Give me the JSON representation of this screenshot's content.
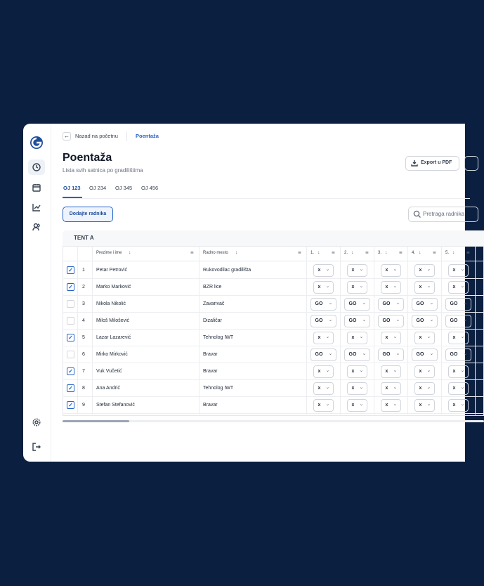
{
  "breadcrumb": {
    "back": "Nazad na početnu",
    "current": "Poentaža"
  },
  "header": {
    "title": "Poentaža",
    "subtitle": "Lista svih satnica po gradilištima",
    "export": "Export u PDF"
  },
  "tabs": {
    "items": [
      "OJ 123",
      "OJ 234",
      "OJ 345",
      "OJ 456"
    ],
    "active": 0
  },
  "toolbar": {
    "add": "Dodajte radnika",
    "search": "Pretraga radnika"
  },
  "table": {
    "group": "TENT A",
    "columns": [
      "Prezime i ime",
      "Radno mesto",
      "1.",
      "2.",
      "3.",
      "4.",
      "5."
    ],
    "rows": [
      {
        "checked": true,
        "num": "1",
        "name": "Petar Petrović",
        "job": "Rukovodilac gradilišta",
        "days": [
          "x",
          "x",
          "x",
          "x",
          "x"
        ]
      },
      {
        "checked": true,
        "num": "2",
        "name": "Marko Marković",
        "job": "BZR lice",
        "days": [
          "x",
          "x",
          "x",
          "x",
          "x"
        ]
      },
      {
        "checked": false,
        "num": "3",
        "name": "Nikola Nikolić",
        "job": "Zavarivač",
        "days": [
          "GO",
          "GO",
          "GO",
          "GO",
          "GO"
        ]
      },
      {
        "checked": false,
        "num": "4",
        "name": "Miloš Milošević",
        "job": "Dizaličar",
        "days": [
          "GO",
          "GO",
          "GO",
          "GO",
          "GO"
        ]
      },
      {
        "checked": true,
        "num": "5",
        "name": "Lazar Lazarević",
        "job": "Tehnolog IWT",
        "days": [
          "x",
          "x",
          "x",
          "x",
          "x"
        ]
      },
      {
        "checked": false,
        "num": "6",
        "name": "Mirko Mirković",
        "job": "Bravar",
        "days": [
          "GO",
          "GO",
          "GO",
          "GO",
          "GO"
        ]
      },
      {
        "checked": true,
        "num": "7",
        "name": "Vuk Vučetić",
        "job": "Bravar",
        "days": [
          "x",
          "x",
          "x",
          "x",
          "x"
        ]
      },
      {
        "checked": true,
        "num": "8",
        "name": "Ana Andrić",
        "job": "Tehnolog IWT",
        "days": [
          "x",
          "x",
          "x",
          "x",
          "x"
        ]
      },
      {
        "checked": true,
        "num": "9",
        "name": "Stefan Stefanović",
        "job": "Bravar",
        "days": [
          "x",
          "x",
          "x",
          "x",
          "x"
        ]
      }
    ]
  }
}
